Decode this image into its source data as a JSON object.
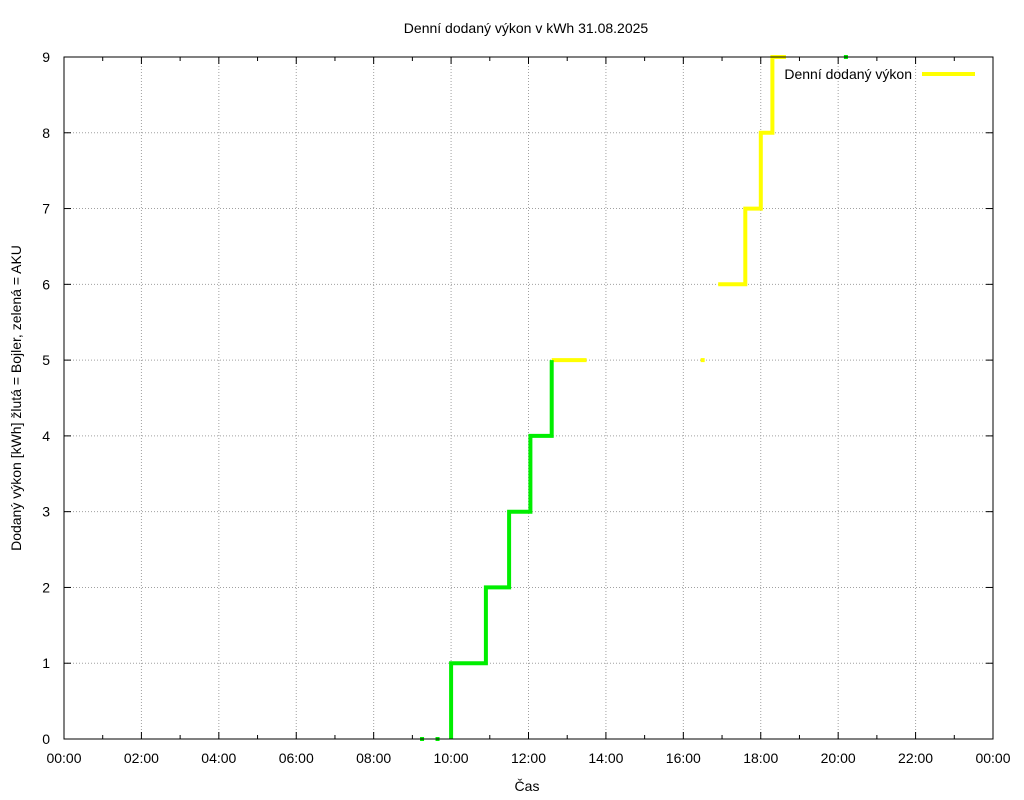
{
  "chart_data": {
    "type": "line",
    "title": "Denní dodaný výkon v kWh 31.08.2025",
    "xlabel": "Čas",
    "ylabel": "Dodaný výkon [kWh]  žlutá = Bojler, zelená = AKU",
    "xlim": [
      0,
      24
    ],
    "ylim": [
      0,
      9
    ],
    "x_ticks": [
      0,
      2,
      4,
      6,
      8,
      10,
      12,
      14,
      16,
      18,
      20,
      22,
      24
    ],
    "x_tick_labels": [
      "00:00",
      "02:00",
      "04:00",
      "06:00",
      "08:00",
      "10:00",
      "12:00",
      "14:00",
      "16:00",
      "18:00",
      "20:00",
      "22:00",
      "00:00"
    ],
    "y_ticks": [
      0,
      1,
      2,
      3,
      4,
      5,
      6,
      7,
      8,
      9
    ],
    "grid": true,
    "legend_position": "top-right",
    "series": [
      {
        "name": "Denní dodaný výkon",
        "color": "#ffff00",
        "step": true,
        "segments": [
          [
            [
              12.6,
              5
            ],
            [
              13.5,
              5
            ]
          ],
          [
            [
              16.9,
              6
            ],
            [
              17.6,
              6
            ],
            [
              17.6,
              7
            ],
            [
              18.0,
              7
            ],
            [
              18.0,
              8
            ],
            [
              18.3,
              8
            ],
            [
              18.3,
              9
            ],
            [
              18.65,
              9
            ]
          ]
        ],
        "dots": [
          [
            16.5,
            5
          ]
        ]
      },
      {
        "color": "#00ee00",
        "step": true,
        "segments": [
          [
            [
              10.0,
              0
            ],
            [
              10.0,
              1
            ],
            [
              10.9,
              1
            ],
            [
              10.9,
              2
            ],
            [
              11.5,
              2
            ],
            [
              11.5,
              3
            ],
            [
              12.05,
              3
            ],
            [
              12.05,
              4
            ],
            [
              12.6,
              4
            ],
            [
              12.6,
              5
            ]
          ]
        ],
        "dots": [
          [
            9.25,
            0
          ],
          [
            9.65,
            0
          ],
          [
            20.2,
            9
          ]
        ]
      }
    ]
  }
}
